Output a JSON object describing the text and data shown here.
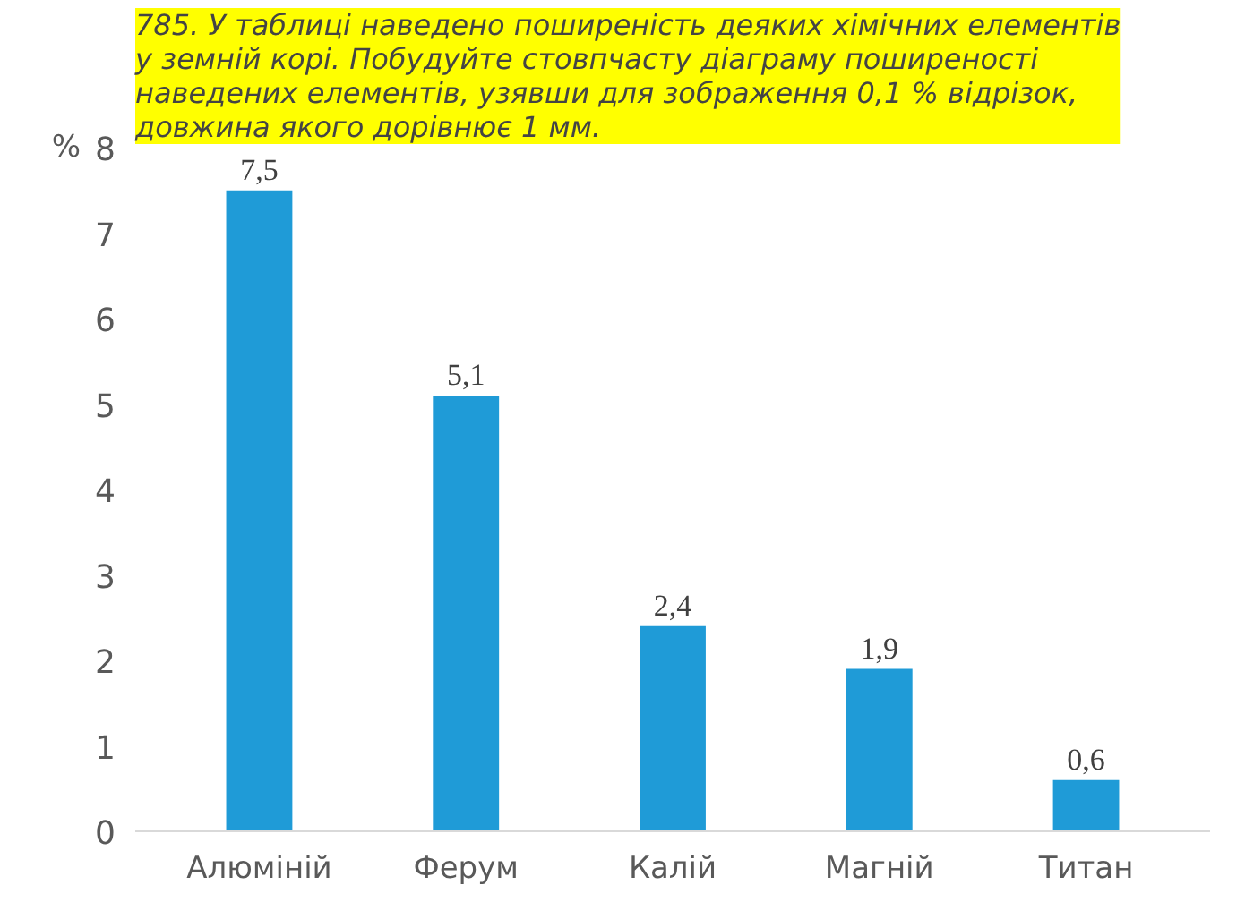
{
  "chart_data": {
    "type": "bar",
    "title": "785. У таблиці наведено поширеність деяких хімічних елементів у земній корі. Побудуйте стовпчасту діаграму поширеності наведених елементів, узявши для зображення 0,1 % відрізок, довжина якого дорівнює 1 мм.",
    "ylabel": "%",
    "categories": [
      "Алюміній",
      "Ферум",
      "Калій",
      "Магній",
      "Титан"
    ],
    "values": [
      7.5,
      5.1,
      2.4,
      1.9,
      0.6
    ],
    "value_labels": [
      "7,5",
      "5,1",
      "2,4",
      "1,9",
      "0,6"
    ],
    "color": "#1f9bd7",
    "ylim": [
      0,
      8
    ],
    "yticks": [
      0,
      1,
      2,
      3,
      4,
      5,
      6,
      7,
      8
    ],
    "grid": false
  }
}
